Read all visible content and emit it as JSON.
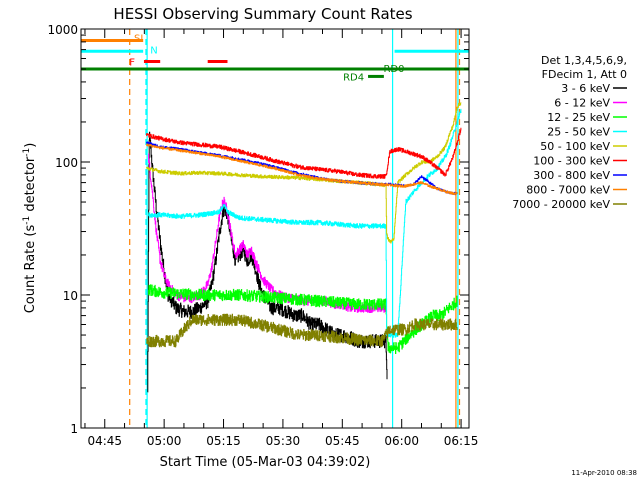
{
  "chart_data": {
    "type": "line",
    "title": "HESSI Observing Summary Count Rates",
    "xlabel": "Start Time (05-Mar-03 04:39:02)",
    "ylabel_main": "Count Rate (s",
    "ylabel_sup1": "-1",
    "ylabel_mid": " detector",
    "ylabel_sup2": "-1",
    "ylabel_end": ")",
    "x_units": "minutes after 04:39:02 UT",
    "xlim": [
      0,
      98
    ],
    "ylim": [
      1,
      1000
    ],
    "yscale": "log",
    "x_ticks": [
      {
        "t": 6,
        "label": "04:45"
      },
      {
        "t": 21,
        "label": "05:00"
      },
      {
        "t": 36,
        "label": "05:15"
      },
      {
        "t": 51,
        "label": "05:30"
      },
      {
        "t": 66,
        "label": "05:45"
      },
      {
        "t": 81,
        "label": "06:00"
      },
      {
        "t": 96,
        "label": "06:15"
      }
    ],
    "y_ticks": [
      {
        "v": 1,
        "label": "1"
      },
      {
        "v": 10,
        "label": "10"
      },
      {
        "v": 100,
        "label": "100"
      },
      {
        "v": 1000,
        "label": "1000"
      }
    ],
    "legend_header": [
      "Det 1,3,4,5,6,9,",
      "FDecim 1, Att 0"
    ],
    "legend_position": "right",
    "series": [
      {
        "name": "3 - 6 keV",
        "color": "#000000",
        "noise": 0.12,
        "t": [
          16.8,
          17.2,
          17.6,
          18,
          19,
          20,
          21,
          22,
          24,
          26,
          28,
          30,
          32,
          33,
          34,
          35,
          36,
          37,
          38,
          39,
          40,
          41,
          42,
          43,
          44,
          45,
          46,
          48,
          50,
          52,
          54,
          56,
          58,
          60,
          62,
          64,
          66,
          68,
          70,
          72,
          74,
          75,
          76,
          77,
          77.3
        ],
        "v": [
          1.8,
          160,
          130,
          90,
          45,
          25,
          15,
          10,
          8,
          7.5,
          7.5,
          8,
          9,
          12,
          18,
          30,
          45,
          40,
          25,
          18,
          20,
          22,
          18,
          20,
          16,
          12,
          10,
          8,
          8,
          7.5,
          7,
          7,
          6,
          6,
          5.5,
          5,
          5,
          4.8,
          4.5,
          4.5,
          4.5,
          4.5,
          4.5,
          4.5,
          2.5
        ]
      },
      {
        "name": "6 - 12 keV",
        "color": "#ff00ff",
        "noise": 0.08,
        "t": [
          17,
          18,
          19,
          20,
          21,
          22,
          24,
          26,
          28,
          30,
          32,
          33,
          34,
          35,
          36,
          37,
          38,
          39,
          40,
          41,
          42,
          43,
          44,
          46,
          48,
          50,
          52,
          54,
          56,
          58,
          60,
          62,
          64,
          66,
          68,
          70,
          72,
          74,
          76,
          77
        ],
        "v": [
          110,
          60,
          30,
          18,
          14,
          12,
          10,
          9.5,
          9.5,
          10,
          12,
          16,
          25,
          40,
          52,
          42,
          28,
          20,
          22,
          24,
          20,
          22,
          18,
          13,
          11,
          10,
          9.5,
          9.5,
          9,
          9,
          9,
          9,
          8.5,
          8.5,
          8,
          8,
          8,
          8,
          8,
          8
        ]
      },
      {
        "name": "12 - 25 keV",
        "color": "#00ff00",
        "noise": 0.1,
        "t": [
          17,
          20,
          30,
          40,
          50,
          60,
          70,
          75,
          77,
          77.5,
          78,
          80,
          83,
          86,
          89,
          91,
          93,
          95
        ],
        "v": [
          11,
          10.5,
          10,
          10,
          9.5,
          9,
          8.5,
          8.5,
          8.5,
          4,
          4,
          4,
          5,
          6,
          7,
          7,
          8,
          9
        ]
      },
      {
        "name": "25 - 50 keV",
        "color": "#00ffff",
        "noise": 0.04,
        "t": [
          17,
          20,
          25,
          30,
          35,
          36,
          37,
          40,
          45,
          50,
          55,
          60,
          65,
          70,
          75,
          77,
          77.2,
          79,
          80,
          82,
          84,
          86,
          88,
          90,
          92,
          93,
          94,
          95,
          96
        ],
        "v": [
          40,
          40,
          39,
          40,
          42,
          48,
          42,
          38,
          37,
          36,
          35,
          35,
          34,
          33,
          33,
          33,
          5,
          5,
          5,
          50,
          60,
          70,
          80,
          90,
          110,
          130,
          160,
          200,
          250
        ]
      },
      {
        "name": "50 - 100 keV",
        "color": "#cccc00",
        "noise": 0.03,
        "t": [
          16.5,
          20,
          25,
          30,
          35,
          40,
          45,
          50,
          55,
          60,
          65,
          70,
          75,
          77,
          77.2,
          78,
          79,
          80,
          82,
          84,
          86,
          88,
          90,
          92,
          93,
          94,
          95,
          96
        ],
        "v": [
          90,
          85,
          82,
          83,
          82,
          80,
          78,
          77,
          76,
          74,
          72,
          70,
          68,
          67,
          28,
          25,
          26,
          70,
          80,
          90,
          100,
          100,
          110,
          130,
          160,
          190,
          260,
          280
        ]
      },
      {
        "name": "100 - 300 keV",
        "color": "#ff0000",
        "noise": 0.035,
        "t": [
          16.5,
          20,
          25,
          30,
          35,
          40,
          45,
          50,
          55,
          60,
          65,
          70,
          75,
          77,
          78,
          80,
          82,
          84,
          86,
          88,
          90,
          92,
          94,
          95,
          96
        ],
        "v": [
          160,
          150,
          140,
          135,
          130,
          120,
          110,
          100,
          92,
          88,
          85,
          80,
          78,
          78,
          120,
          125,
          120,
          115,
          110,
          100,
          90,
          80,
          110,
          140,
          180
        ]
      },
      {
        "name": "300 - 800 keV",
        "color": "#0000ff",
        "noise": 0.02,
        "t": [
          16.5,
          20,
          25,
          30,
          35,
          40,
          45,
          50,
          55,
          60,
          65,
          70,
          75,
          78,
          80,
          82,
          84,
          86,
          88,
          90,
          92,
          94,
          95
        ],
        "v": [
          140,
          130,
          125,
          118,
          112,
          105,
          98,
          90,
          82,
          76,
          72,
          70,
          68,
          68,
          67,
          66,
          68,
          78,
          70,
          63,
          60,
          58,
          58
        ]
      },
      {
        "name": "800 - 7000 keV",
        "color": "#ff8000",
        "noise": 0.02,
        "t": [
          16.5,
          20,
          25,
          30,
          35,
          40,
          45,
          50,
          55,
          60,
          65,
          70,
          75,
          78,
          80,
          82,
          84,
          86,
          88,
          90,
          92,
          94,
          95
        ],
        "v": [
          135,
          128,
          122,
          116,
          110,
          102,
          95,
          88,
          80,
          75,
          72,
          70,
          68,
          67,
          66,
          66,
          68,
          70,
          66,
          63,
          60,
          58,
          58
        ]
      },
      {
        "name": "7000 - 20000 keV",
        "color": "#808000",
        "noise": 0.1,
        "t": [
          16.5,
          20,
          24,
          26,
          28,
          30,
          35,
          40,
          45,
          50,
          55,
          60,
          65,
          70,
          75,
          76,
          77,
          78,
          80,
          82,
          84,
          86,
          88,
          90,
          92,
          94,
          95
        ],
        "v": [
          4.5,
          4.5,
          4.5,
          5.5,
          6.5,
          6.5,
          6.5,
          6.5,
          6,
          5.5,
          5,
          5,
          4.8,
          4.6,
          4.5,
          4.5,
          5,
          5.5,
          5.5,
          5.5,
          6,
          6,
          6,
          6,
          6,
          6,
          6
        ]
      }
    ],
    "flag_bars": [
      {
        "label": "SI",
        "color": "#ff8000",
        "t0": 0,
        "t1": 15.7,
        "level": 820
      },
      {
        "label": "N",
        "color": "#00ffff",
        "t0": 0,
        "t1": 15.7,
        "level": 680
      },
      {
        "label": "N",
        "color": "#00ffff",
        "t0": 79.2,
        "t1": 98,
        "level": 680
      },
      {
        "label": "F",
        "color": "#ff0000",
        "t0": 15.9,
        "t1": 20,
        "level": 570
      },
      {
        "label": "",
        "color": "#ff0000",
        "t0": 32,
        "t1": 37,
        "level": 570
      },
      {
        "label": "",
        "color": "#008000",
        "t0": 0,
        "t1": 98,
        "level": 500
      },
      {
        "label": "RD4",
        "color": "#008000",
        "t0": 72.5,
        "t1": 76.5,
        "level": 440
      }
    ],
    "flag_labels": [
      {
        "text": "SI",
        "color": "#ff8000",
        "t": 13.4,
        "level": 860
      },
      {
        "text": "N",
        "color": "#00ffff",
        "t": 17.5,
        "level": 700
      },
      {
        "text": "F",
        "color": "#ff0000",
        "t": 12.2,
        "level": 570
      },
      {
        "text": "RD0",
        "color": "#008000",
        "t": 76.4,
        "level": 510
      },
      {
        "text": "RD4",
        "color": "#008000",
        "t": 66.2,
        "level": 440
      }
    ],
    "vlines": [
      {
        "t": 12.3,
        "color": "#ff8000",
        "dashed": true
      },
      {
        "t": 16.4,
        "color": "#00ffff",
        "dashed": true
      },
      {
        "t": 16.7,
        "color": "#00ffff",
        "dashed": false
      },
      {
        "t": 78.7,
        "color": "#00ffff",
        "dashed": false
      },
      {
        "t": 94.7,
        "color": "#ff8000",
        "dashed": false
      },
      {
        "t": 95.2,
        "color": "#00ffff",
        "dashed": false
      },
      {
        "t": 95.6,
        "color": "#ff8000",
        "dashed": true
      }
    ]
  },
  "footer_date": "11-Apr-2010 08:38"
}
